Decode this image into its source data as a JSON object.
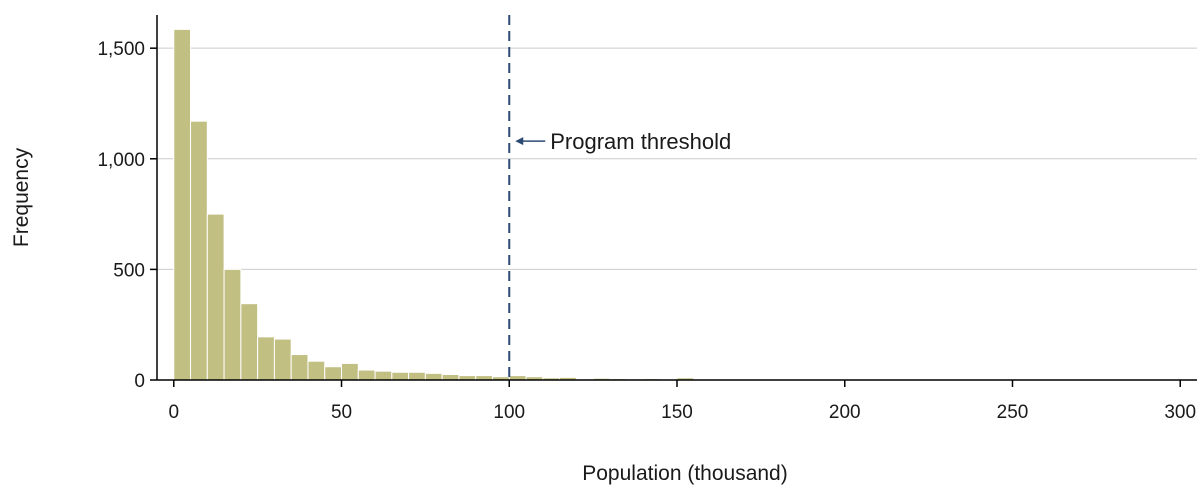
{
  "chart_data": {
    "type": "bar",
    "subtype": "histogram",
    "bin_width": 5,
    "x": [
      2.5,
      7.5,
      12.5,
      17.5,
      22.5,
      27.5,
      32.5,
      37.5,
      42.5,
      47.5,
      52.5,
      57.5,
      62.5,
      67.5,
      72.5,
      77.5,
      82.5,
      87.5,
      92.5,
      97.5,
      102.5,
      107.5,
      112.5,
      117.5,
      122.5,
      127.5,
      132.5,
      137.5,
      142.5,
      147.5,
      152.5,
      157.5,
      162.5,
      167.5,
      172.5,
      177.5,
      182.5,
      187.5,
      192.5,
      197.5,
      202.5,
      207.5,
      212.5,
      217.5,
      222.5,
      227.5,
      232.5,
      237.5,
      242.5,
      247.5,
      252.5,
      257.5,
      262.5,
      267.5,
      272.5,
      277.5,
      282.5,
      287.5,
      292.5,
      297.5
    ],
    "values": [
      1585,
      1170,
      750,
      500,
      345,
      195,
      185,
      115,
      85,
      60,
      75,
      45,
      40,
      35,
      35,
      30,
      25,
      20,
      20,
      15,
      20,
      15,
      10,
      12,
      5,
      8,
      6,
      5,
      6,
      4,
      10,
      4,
      3,
      3,
      2,
      2,
      3,
      4,
      2,
      2,
      3,
      4,
      4,
      3,
      2,
      2,
      2,
      3,
      4,
      2,
      2,
      2,
      2,
      2,
      2,
      2,
      2,
      2,
      2,
      2
    ],
    "xlabel": "Population (thousand)",
    "ylabel": "Frequency",
    "xlim": [
      -5,
      305
    ],
    "ylim": [
      0,
      1650
    ],
    "xticks": [
      0,
      50,
      100,
      150,
      200,
      250,
      300
    ],
    "xtick_labels": [
      "0",
      "50",
      "100",
      "150",
      "200",
      "250",
      "300"
    ],
    "yticks": [
      0,
      500,
      1000,
      1500
    ],
    "ytick_labels": [
      "0",
      "500",
      "1,000",
      "1,500"
    ],
    "grid": "horizontal",
    "bar_color": "#c2bf83",
    "bar_edge_color": "#ffffff",
    "threshold": {
      "x": 100,
      "label": "Program threshold",
      "color": "#2c4a74",
      "annotation_y": 1080
    }
  }
}
